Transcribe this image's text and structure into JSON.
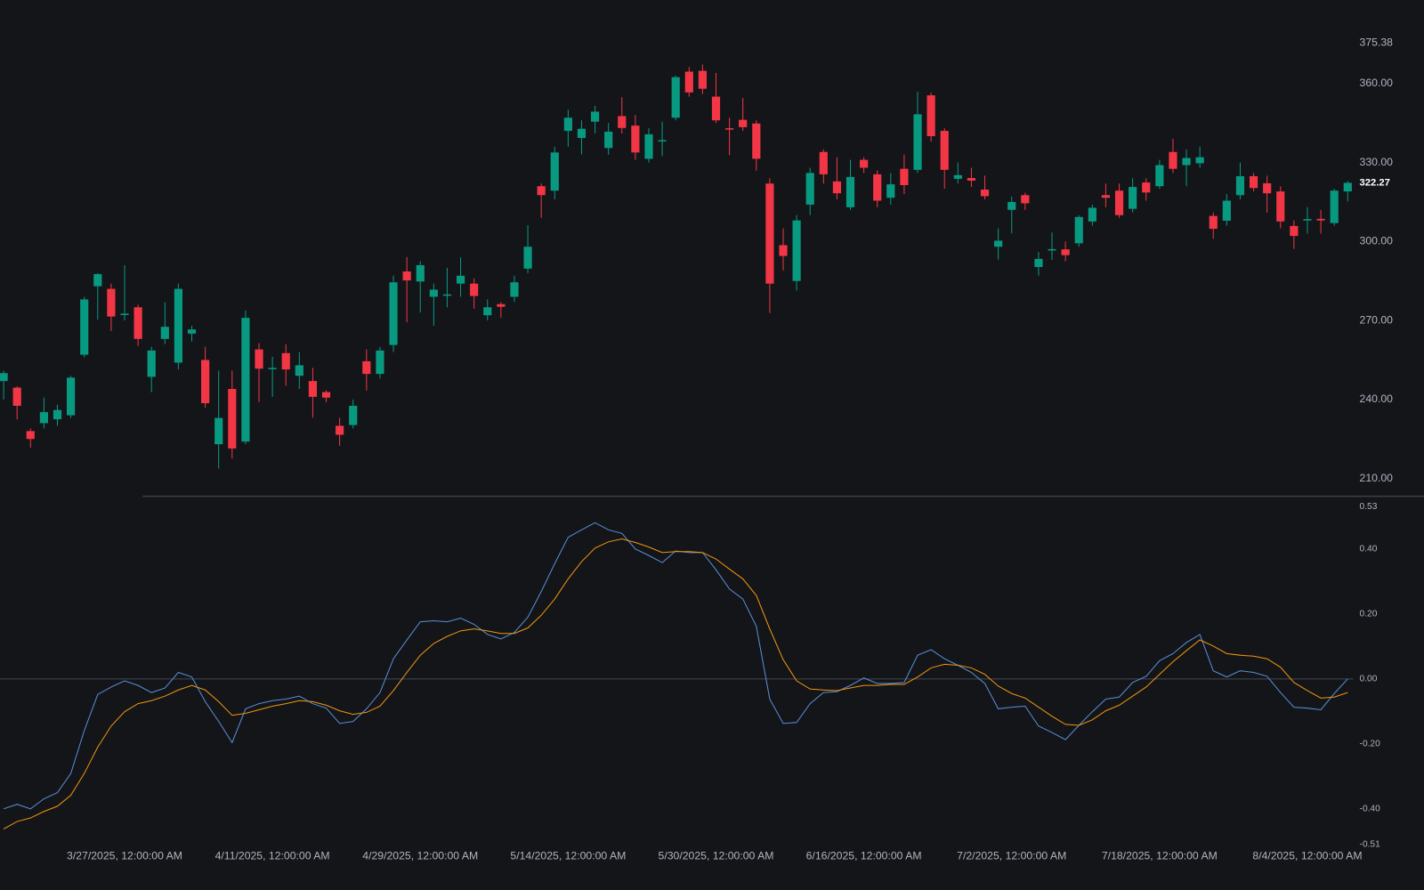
{
  "chart_data": [
    {
      "type": "candlestick",
      "up_color": "#089981",
      "down_color": "#f23645",
      "ylim": [
        203.4,
        391.7
      ],
      "yticks": [
        375.38,
        {
          "value": 360,
          "label": "360.00"
        },
        {
          "value": 330,
          "label": "330.00"
        },
        {
          "value": 300,
          "label": "300.00"
        },
        {
          "value": 270,
          "label": "270.00"
        },
        {
          "value": 240,
          "label": "240.00"
        },
        {
          "value": 210,
          "label": "210.00"
        }
      ],
      "last_price_label": true,
      "open": [
        247,
        244.5,
        228,
        231,
        232.5,
        234,
        257,
        283,
        282,
        272.2,
        275,
        248.6,
        263,
        254,
        265,
        255,
        223,
        244,
        224,
        259,
        251.5,
        257.6,
        249,
        247,
        242.8,
        230,
        230.3,
        254.5,
        249.7,
        260.7,
        288.6,
        284.8,
        279,
        279.5,
        284,
        284,
        272,
        276.2,
        279,
        289.7,
        321,
        319.3,
        342,
        339.3,
        345.5,
        335.5,
        347.6,
        344,
        331.4,
        338.1,
        347,
        364.5,
        364.8,
        355,
        343,
        346.2,
        344.8,
        322,
        298.6,
        285,
        314,
        334,
        322.8,
        313,
        331,
        325.5,
        316.6,
        327.6,
        327.2,
        355.5,
        342,
        323.8,
        324.1,
        319.7,
        298,
        312,
        317.6,
        290.3,
        296.7,
        297,
        299.3,
        307.6,
        317.6,
        319.3,
        312.4,
        322.4,
        321,
        334,
        329,
        329.7,
        309.7,
        307.9,
        317.6,
        324.8,
        322.1,
        319,
        305.9,
        308.1,
        308.6,
        307,
        319
      ],
      "high": [
        251,
        245,
        229,
        240.7,
        238,
        249,
        279,
        288,
        284,
        291,
        276,
        260,
        276.9,
        284,
        268,
        260,
        251,
        251,
        273.8,
        261.4,
        256.2,
        261,
        258,
        252,
        243.5,
        233,
        240,
        259,
        260,
        287,
        294.1,
        292.5,
        284,
        290,
        294,
        286,
        278,
        277,
        287,
        306.2,
        322,
        336,
        350,
        346,
        351.5,
        345,
        354.8,
        348,
        343,
        345.5,
        363,
        366.2,
        367.2,
        364,
        347,
        354.5,
        346,
        324,
        305,
        310,
        328,
        335,
        332,
        331,
        332,
        327,
        326,
        333,
        356.9,
        356.5,
        343,
        330,
        328,
        325,
        305,
        317,
        318.5,
        296,
        303.4,
        300,
        310,
        314,
        322,
        322,
        324,
        324,
        331,
        339,
        335,
        336,
        311,
        318,
        330,
        326,
        325,
        321,
        308,
        313,
        312,
        320,
        323
      ],
      "low": [
        240,
        232.4,
        221.7,
        229,
        230,
        233,
        256,
        270.3,
        266,
        270,
        260.3,
        242.8,
        261,
        251.4,
        262,
        236.9,
        213.8,
        217.6,
        223,
        239,
        241,
        245.2,
        244,
        233.1,
        239,
        222.4,
        229,
        243.4,
        248,
        258,
        269.3,
        273,
        268,
        275,
        279,
        274.5,
        270,
        271,
        277,
        288,
        309,
        316,
        336,
        333.1,
        341,
        333,
        341,
        331,
        330,
        332.4,
        346,
        355,
        356,
        345,
        332.8,
        342,
        326.9,
        272.8,
        289,
        281.4,
        310,
        322,
        316,
        312,
        326,
        313,
        314,
        318,
        326,
        338,
        320,
        322,
        320.7,
        316,
        293.1,
        303.1,
        312,
        287,
        293,
        292.5,
        298,
        306,
        313,
        309,
        311,
        315.5,
        320,
        326,
        321,
        328,
        301,
        306,
        316,
        319,
        311,
        305,
        297.2,
        303,
        303,
        306,
        315.2
      ],
      "close": [
        250,
        237.6,
        225,
        235.2,
        236,
        248.3,
        278,
        287.6,
        271.5,
        272.6,
        263,
        258.6,
        267.6,
        282,
        266.6,
        238.6,
        233,
        221.4,
        271,
        251.7,
        252,
        251.4,
        253,
        241,
        240.7,
        226.6,
        237.6,
        249.7,
        258.6,
        284.5,
        285.2,
        291,
        281.7,
        279.9,
        287,
        279.3,
        275,
        275.2,
        284.5,
        298,
        317.6,
        333.8,
        347,
        342.8,
        349.3,
        341.7,
        343.1,
        333.8,
        340.7,
        338.5,
        362.4,
        356.6,
        358,
        346,
        342.6,
        343.4,
        331.4,
        284,
        294.5,
        308,
        326,
        325.5,
        318.3,
        324.5,
        328,
        315.5,
        321.7,
        321.4,
        348.3,
        340,
        327.2,
        325.2,
        323.1,
        317.2,
        300.3,
        315,
        314.5,
        293.4,
        297.1,
        294.8,
        309.3,
        312.8,
        316.6,
        310,
        320.7,
        318.6,
        329,
        327.6,
        331.7,
        332,
        304.8,
        315.5,
        324.8,
        320.3,
        318.3,
        307.6,
        302.1,
        308.5,
        308,
        319.3,
        322.27
      ]
    },
    {
      "type": "line",
      "ylim": [
        -0.51,
        0.53
      ],
      "yticks": [
        0.53,
        {
          "value": 0.4,
          "label": "0.40"
        },
        {
          "value": 0.2,
          "label": "0.20"
        },
        {
          "value": 0,
          "label": "0.00"
        },
        {
          "value": -0.2,
          "label": "-0.20"
        },
        {
          "value": -0.4,
          "label": "-0.40"
        },
        -0.51
      ],
      "baseline": 0,
      "categories": [
        null,
        null,
        null,
        null,
        null,
        null,
        null,
        null,
        null,
        "3/27/2025, 12:00:00 AM",
        null,
        null,
        null,
        null,
        null,
        null,
        null,
        null,
        null,
        null,
        "4/11/2025, 12:00:00 AM",
        null,
        null,
        null,
        null,
        null,
        null,
        null,
        null,
        null,
        null,
        "4/29/2025, 12:00:00 AM",
        null,
        null,
        null,
        null,
        null,
        null,
        null,
        null,
        null,
        null,
        "5/14/2025, 12:00:00 AM",
        null,
        null,
        null,
        null,
        null,
        null,
        null,
        null,
        null,
        null,
        "5/30/2025, 12:00:00 AM",
        null,
        null,
        null,
        null,
        null,
        null,
        null,
        null,
        null,
        null,
        "6/16/2025, 12:00:00 AM",
        null,
        null,
        null,
        null,
        null,
        null,
        null,
        null,
        null,
        null,
        "7/2/2025, 12:00:00 AM",
        null,
        null,
        null,
        null,
        null,
        null,
        null,
        null,
        null,
        null,
        "7/18/2025, 12:00:00 AM",
        null,
        null,
        null,
        null,
        null,
        null,
        null,
        null,
        null,
        null,
        "8/4/2025, 12:00:00 AM",
        null,
        null,
        null
      ],
      "series": [
        {
          "color": "#5a8ed8",
          "values": [
            -0.4,
            -0.386,
            -0.4,
            -0.369,
            -0.35,
            -0.291,
            -0.159,
            -0.048,
            -0.025,
            -0.006,
            -0.02,
            -0.042,
            -0.028,
            0.02,
            0.006,
            -0.07,
            -0.131,
            -0.196,
            -0.092,
            -0.076,
            -0.067,
            -0.062,
            -0.053,
            -0.076,
            -0.09,
            -0.137,
            -0.131,
            -0.092,
            -0.042,
            0.062,
            0.12,
            0.176,
            0.179,
            0.176,
            0.187,
            0.168,
            0.137,
            0.123,
            0.143,
            0.19,
            0.269,
            0.355,
            0.436,
            0.459,
            0.481,
            0.459,
            0.448,
            0.4,
            0.38,
            0.358,
            0.394,
            0.389,
            0.389,
            0.336,
            0.277,
            0.246,
            0.162,
            -0.062,
            -0.137,
            -0.134,
            -0.076,
            -0.042,
            -0.039,
            -0.02,
            0.003,
            -0.014,
            -0.014,
            -0.011,
            0.073,
            0.09,
            0.062,
            0.042,
            0.02,
            -0.014,
            -0.092,
            -0.087,
            -0.084,
            -0.145,
            -0.165,
            -0.187,
            -0.143,
            -0.101,
            -0.062,
            -0.056,
            -0.011,
            0.008,
            0.056,
            0.078,
            0.112,
            0.137,
            0.025,
            0.006,
            0.025,
            0.02,
            0.008,
            -0.042,
            -0.087,
            -0.09,
            -0.095,
            -0.045,
            0
          ]
        },
        {
          "color": "#f0960e",
          "values": [
            -0.462,
            -0.439,
            -0.428,
            -0.408,
            -0.392,
            -0.358,
            -0.291,
            -0.21,
            -0.145,
            -0.101,
            -0.076,
            -0.067,
            -0.053,
            -0.034,
            -0.02,
            -0.034,
            -0.07,
            -0.112,
            -0.106,
            -0.095,
            -0.084,
            -0.076,
            -0.067,
            -0.07,
            -0.081,
            -0.098,
            -0.109,
            -0.103,
            -0.084,
            -0.036,
            0.02,
            0.073,
            0.109,
            0.131,
            0.148,
            0.154,
            0.148,
            0.14,
            0.14,
            0.157,
            0.196,
            0.246,
            0.308,
            0.361,
            0.403,
            0.422,
            0.431,
            0.42,
            0.406,
            0.389,
            0.392,
            0.392,
            0.389,
            0.369,
            0.338,
            0.308,
            0.257,
            0.154,
            0.059,
            -0.006,
            -0.031,
            -0.034,
            -0.036,
            -0.028,
            -0.02,
            -0.02,
            -0.017,
            -0.017,
            0.006,
            0.034,
            0.045,
            0.042,
            0.034,
            0.014,
            -0.022,
            -0.045,
            -0.059,
            -0.087,
            -0.115,
            -0.14,
            -0.143,
            -0.126,
            -0.098,
            -0.081,
            -0.053,
            -0.025,
            0.014,
            0.053,
            0.087,
            0.12,
            0.101,
            0.078,
            0.073,
            0.07,
            0.062,
            0.036,
            -0.011,
            -0.036,
            -0.059,
            -0.056,
            -0.042
          ]
        }
      ]
    }
  ]
}
